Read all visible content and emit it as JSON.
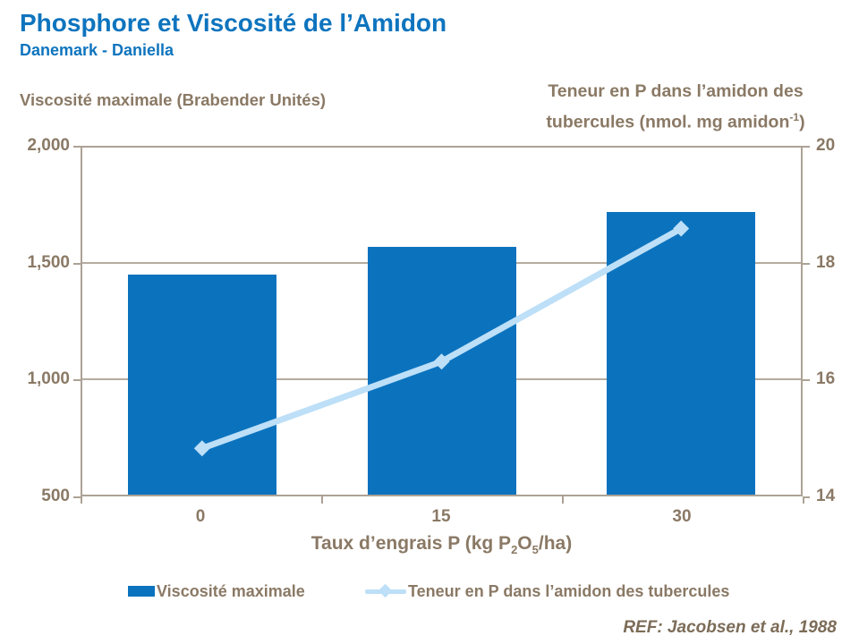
{
  "header": {
    "title": "Phosphore et Viscosité de l’Amidon",
    "subtitle": "Danemark - Daniella"
  },
  "colors": {
    "title_blue": "#0E74BE",
    "bar_blue": "#0B73BE",
    "line_lightblue": "#BDDFF7",
    "axis_text_tan": "#8A7965",
    "axis_line_tan": "#ACA295",
    "ref_brown": "#7C6C58"
  },
  "labels": {
    "right_axis_line1": "Teneur en P dans l’amidon des",
    "right_axis_line2_pre": "tubercules (nmol. mg amidon",
    "right_axis_sup": "-1",
    "right_axis_close": ")",
    "x_title_p1": "Taux d’engrais P (kg P",
    "x_title_sub1": "2",
    "x_title_p2": "O",
    "x_title_sub2": "5",
    "x_title_p3": "/ha)"
  },
  "chart_data": {
    "type": "bar",
    "title": "Phosphore et Viscosité de l’Amidon",
    "subtitle": "Danemark - Daniella",
    "categories": [
      "0",
      "15",
      "30"
    ],
    "series": [
      {
        "name": "Viscosité maximale",
        "type": "bar",
        "axis": "left",
        "color": "#0B73BE",
        "values": [
          1450,
          1570,
          1720
        ]
      },
      {
        "name": "Teneur en P dans l’amidon des tubercules",
        "type": "line",
        "axis": "right",
        "color": "#BDDFF7",
        "marker": "diamond",
        "values": [
          14.8,
          16.3,
          18.6
        ]
      }
    ],
    "left_axis": {
      "label": "Viscosité maximale (Brabender Unités)",
      "ticks": [
        "2,000",
        "1,500",
        "1,000",
        "500"
      ],
      "range": [
        500,
        2000
      ],
      "step": 500
    },
    "right_axis": {
      "label": "Teneur en P dans l’amidon des tubercules (nmol. mg amidon-1)",
      "ticks": [
        "20",
        "18",
        "16",
        "14"
      ],
      "range": [
        14,
        20
      ],
      "step": 2
    },
    "x_axis": {
      "label": "Taux d’engrais P (kg P2O5/ha)",
      "ticks": [
        "0",
        "15",
        "30"
      ]
    },
    "grid": true,
    "legend_position": "bottom",
    "legend": [
      {
        "label": "Viscosité maximale"
      },
      {
        "label": "Teneur en P dans l’amidon des tubercules"
      }
    ],
    "reference": "REF: Jacobsen et al., 1988"
  }
}
